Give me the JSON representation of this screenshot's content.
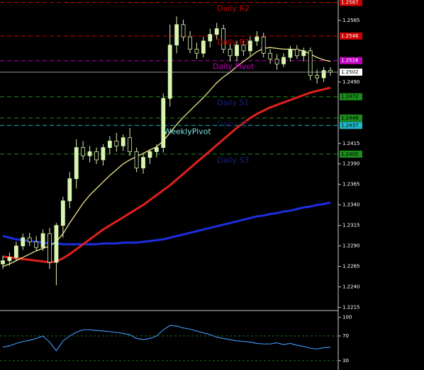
{
  "chart_data": [
    {
      "type": "candlestick",
      "open": [
        1.2268,
        1.2272,
        1.2276,
        1.229,
        1.23,
        1.2295,
        1.2288,
        1.2305,
        1.227,
        1.2315,
        1.2345,
        1.2372,
        1.241,
        1.24,
        1.2405,
        1.2395,
        1.241,
        1.2418,
        1.2412,
        1.2422,
        1.2405,
        1.2385,
        1.2398,
        1.2405,
        1.241,
        1.247,
        1.2535,
        1.256,
        1.2545,
        1.253,
        1.2525,
        1.254,
        1.2548,
        1.2555,
        1.253,
        1.2522,
        1.2535,
        1.2528,
        1.254,
        1.2545,
        1.2525,
        1.2518,
        1.2512,
        1.252,
        1.253,
        1.2522,
        1.2528,
        1.2498,
        1.2495,
        1.2504
      ],
      "high": [
        1.2278,
        1.2282,
        1.2295,
        1.2305,
        1.2306,
        1.2302,
        1.231,
        1.2312,
        1.2318,
        1.235,
        1.238,
        1.242,
        1.2418,
        1.2412,
        1.241,
        1.2414,
        1.2424,
        1.2428,
        1.2426,
        1.2434,
        1.241,
        1.2402,
        1.2408,
        1.2414,
        1.2476,
        1.256,
        1.257,
        1.2566,
        1.2552,
        1.2538,
        1.2545,
        1.2555,
        1.2562,
        1.256,
        1.2536,
        1.254,
        1.254,
        1.2545,
        1.2552,
        1.255,
        1.253,
        1.2524,
        1.2525,
        1.2534,
        1.2535,
        1.2532,
        1.2532,
        1.2505,
        1.2508,
        1.2508
      ],
      "low": [
        1.2262,
        1.2266,
        1.2272,
        1.2285,
        1.229,
        1.2284,
        1.2284,
        1.2262,
        1.2242,
        1.23,
        1.2336,
        1.236,
        1.2395,
        1.2392,
        1.239,
        1.2388,
        1.2402,
        1.2405,
        1.2406,
        1.24,
        1.238,
        1.2378,
        1.239,
        1.2398,
        1.2404,
        1.246,
        1.2525,
        1.254,
        1.2525,
        1.2518,
        1.252,
        1.2532,
        1.2542,
        1.2525,
        1.2515,
        1.2515,
        1.2522,
        1.2522,
        1.2534,
        1.252,
        1.2512,
        1.2505,
        1.2508,
        1.2515,
        1.2518,
        1.2515,
        1.2492,
        1.2488,
        1.249,
        1.2498
      ],
      "close": [
        1.2272,
        1.2276,
        1.229,
        1.23,
        1.2295,
        1.2288,
        1.2305,
        1.227,
        1.2315,
        1.2345,
        1.2372,
        1.241,
        1.24,
        1.2405,
        1.2395,
        1.241,
        1.2418,
        1.2412,
        1.2422,
        1.2405,
        1.2385,
        1.2398,
        1.2405,
        1.241,
        1.247,
        1.2535,
        1.256,
        1.2545,
        1.253,
        1.2525,
        1.254,
        1.2548,
        1.2555,
        1.253,
        1.2522,
        1.2535,
        1.2528,
        1.254,
        1.2545,
        1.2525,
        1.2518,
        1.2512,
        1.252,
        1.253,
        1.2522,
        1.2528,
        1.2498,
        1.2495,
        1.2504,
        1.2502
      ],
      "up_color": "#d8f5b0",
      "down_color": "#000000",
      "series": [
        {
          "color": "#f0e68c",
          "values": [
            1.2265,
            1.2268,
            1.2272,
            1.2276,
            1.228,
            1.2284,
            1.2287,
            1.229,
            1.2295,
            1.2305,
            1.2318,
            1.233,
            1.2342,
            1.2352,
            1.236,
            1.2368,
            1.2376,
            1.2383,
            1.239,
            1.2395,
            1.2399,
            1.2403,
            1.2407,
            1.2411,
            1.2418,
            1.2428,
            1.2438,
            1.2447,
            1.2455,
            1.2463,
            1.2471,
            1.248,
            1.2489,
            1.2496,
            1.2502,
            1.2509,
            1.2515,
            1.2521,
            1.2527,
            1.2531,
            1.2532,
            1.2531,
            1.253,
            1.253,
            1.2529,
            1.2528,
            1.2524,
            1.252,
            1.2517,
            1.2515
          ]
        },
        {
          "color": "#e0201c",
          "values": [
            1.2277,
            1.2276,
            1.2275,
            1.2274,
            1.2273,
            1.2272,
            1.2271,
            1.227,
            1.2271,
            1.2275,
            1.228,
            1.2286,
            1.2292,
            1.2298,
            1.2304,
            1.231,
            1.2315,
            1.232,
            1.2325,
            1.233,
            1.2335,
            1.234,
            1.2346,
            1.2352,
            1.2358,
            1.2364,
            1.2371,
            1.2378,
            1.2385,
            1.2392,
            1.2399,
            1.2406,
            1.2413,
            1.242,
            1.2427,
            1.2434,
            1.244,
            1.2446,
            1.2451,
            1.2455,
            1.2459,
            1.2462,
            1.2465,
            1.2468,
            1.2471,
            1.2474,
            1.2477,
            1.2479,
            1.2481,
            1.2483
          ]
        },
        {
          "color": "#1c2ee0",
          "values": [
            1.2302,
            1.23,
            1.2298,
            1.2297,
            1.2296,
            1.2295,
            1.2294,
            1.2293,
            1.2293,
            1.2292,
            1.2292,
            1.2292,
            1.2292,
            1.2292,
            1.2292,
            1.2293,
            1.2293,
            1.2293,
            1.2294,
            1.2294,
            1.2294,
            1.2295,
            1.2296,
            1.2297,
            1.2298,
            1.23,
            1.2302,
            1.2304,
            1.2306,
            1.2308,
            1.231,
            1.2312,
            1.2314,
            1.2316,
            1.2318,
            1.232,
            1.2322,
            1.2324,
            1.2326,
            1.2327,
            1.2329,
            1.233,
            1.2332,
            1.2333,
            1.2335,
            1.2337,
            1.2338,
            1.234,
            1.2341,
            1.2343
          ]
        }
      ],
      "ylim": [
        1.2212,
        1.259
      ],
      "yticks": [
        1.2565,
        {
          "value": 1.249,
          "label": "1.2490"
        },
        1.2415,
        {
          "value": 1.239,
          "label": "1.2390"
        },
        1.2365,
        {
          "value": 1.234,
          "label": "1.2340"
        },
        1.2315,
        {
          "value": 1.229,
          "label": "1.2290"
        },
        1.2265,
        {
          "value": 1.224,
          "label": "1.2240"
        },
        1.2215
      ],
      "levels": [
        {
          "label": "Daily R2",
          "value": 1.2587,
          "color": "#cc0000",
          "label_color": "#cc0000",
          "text_color": "#ffffff"
        },
        {
          "label": "Daily R1",
          "value": 1.2546,
          "color": "#cc0000",
          "label_color": "#cc0000",
          "text_color": "#ffffff"
        },
        {
          "label": "Daily Pivot",
          "value": 1.2516,
          "color": "#c000c0",
          "label_color": "#c000c0",
          "text_color": "#ffffff"
        },
        {
          "label": "Daily S1",
          "value": 1.2472,
          "color": "#1a8c1a",
          "label_color": "#1a237e",
          "text_color": "#000000"
        },
        {
          "label": "Daily S2",
          "value": 1.2446,
          "color": "#1a8c1a",
          "label_color": "#0d1a4a",
          "text_color": "#000000"
        },
        {
          "label": "WeeklyPivot",
          "value": 1.2437,
          "color": "#20b8c8",
          "label_color": "#7fe0e0",
          "text_color": "#000000"
        },
        {
          "label": "Daily S3",
          "value": 1.2402,
          "color": "#1a8c1a",
          "label_color": "#1a237e",
          "text_color": "#000000"
        }
      ],
      "last_price": 1.2502
    },
    {
      "type": "line",
      "series": [
        {
          "color": "#3a8ee8",
          "values": [
            52,
            54,
            58,
            61,
            63,
            66,
            70,
            60,
            46,
            62,
            70,
            76,
            80,
            80,
            79,
            78,
            77,
            76,
            74,
            72,
            66,
            64,
            66,
            70,
            80,
            87,
            86,
            83,
            81,
            78,
            75,
            72,
            68,
            66,
            64,
            62,
            61,
            60,
            58,
            57,
            57,
            59,
            56,
            58,
            55,
            53,
            50,
            49,
            51,
            52
          ]
        }
      ],
      "ylim": [
        16,
        110
      ],
      "yticks": [
        100,
        70,
        30
      ],
      "levels": [
        70,
        30
      ]
    }
  ]
}
